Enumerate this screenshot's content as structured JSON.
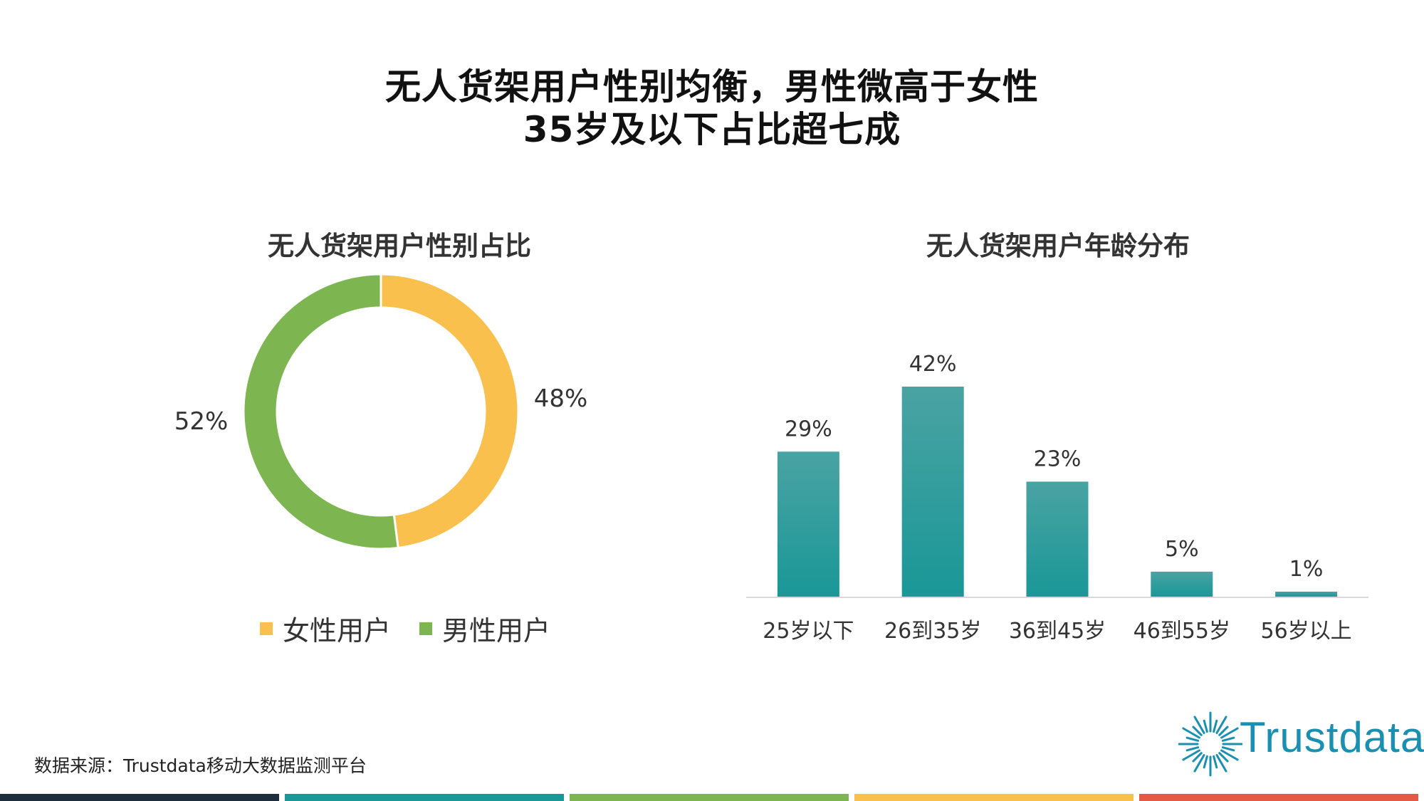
{
  "page": {
    "title_line1": "无人货架用户性别均衡，男性微高于女性",
    "title_line2": "35岁及以下占比超七成",
    "source": "数据来源：Trustdata移动大数据监测平台",
    "logo_text": "Trustdata"
  },
  "colors": {
    "female": "#F9C04E",
    "male": "#7DB551",
    "bar": "#1A9797",
    "footer": [
      "#1F2E3D",
      "#1A9797",
      "#7DB551",
      "#F9C04E",
      "#E55A45"
    ]
  },
  "chart_data": [
    {
      "type": "pie",
      "variant": "donut",
      "title": "无人货架用户性别占比",
      "categories": [
        "女性用户",
        "男性用户"
      ],
      "values": [
        48,
        52
      ],
      "labels": [
        "48%",
        "52%"
      ],
      "legend_position": "bottom"
    },
    {
      "type": "bar",
      "title": "无人货架用户年龄分布",
      "categories": [
        "25岁以下",
        "26到35岁",
        "36到45岁",
        "46到55岁",
        "56岁以上"
      ],
      "values": [
        29,
        42,
        23,
        5,
        1
      ],
      "labels": [
        "29%",
        "42%",
        "23%",
        "5%",
        "1%"
      ],
      "ylim": [
        0,
        50
      ]
    }
  ]
}
